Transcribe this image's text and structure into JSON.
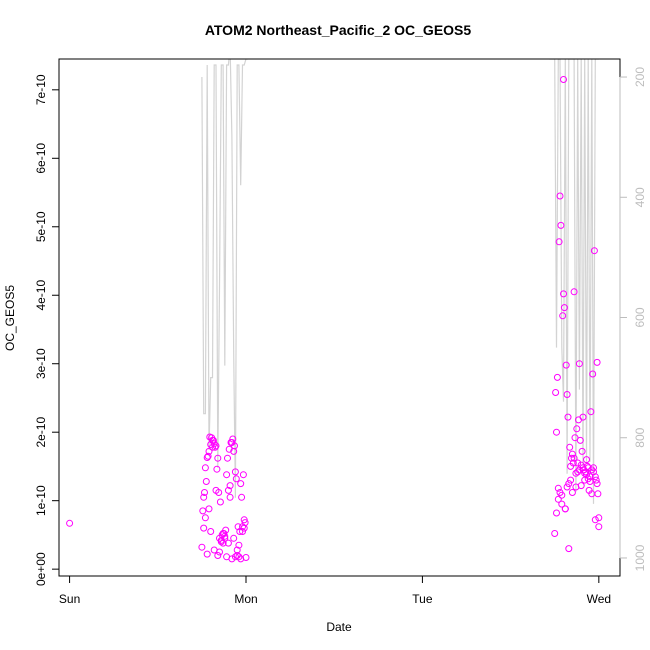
{
  "chart_data": {
    "type": "scatter",
    "title": "ATOM2 Northeast_Pacific_2 OC_GEOS5",
    "xlabel": "Date",
    "ylabel": "OC_GEOS5",
    "x_ticks": [
      "Sun",
      "Mon",
      "Tue",
      "Wed"
    ],
    "x_range_days": [
      -0.06,
      3.12
    ],
    "y_ticks": [
      "0e+00",
      "1e-10",
      "2e-10",
      "3e-10",
      "4e-10",
      "5e-10",
      "6e-10",
      "7e-10"
    ],
    "ylim": [
      -1e-11,
      7.45e-10
    ],
    "y2_ticks": [
      "200",
      "400",
      "600",
      "800",
      "1000"
    ],
    "y2_lim_reversed": [
      1030,
      170
    ],
    "grid": false,
    "colors": {
      "points": "#ff00ff",
      "pressure_line": "#d3d3d3",
      "right_axis": "#bdbdbd"
    },
    "series": [
      {
        "values_x_days": [
          0.0,
          0.75,
          0.76,
          0.77,
          0.78,
          0.79,
          0.8,
          0.81,
          0.82,
          0.83,
          0.84,
          0.85,
          0.86,
          0.87,
          0.88,
          0.89,
          0.9,
          0.91,
          0.92,
          0.93,
          0.94,
          0.95,
          0.96,
          0.97,
          0.98,
          0.99,
          1.0,
          0.755,
          0.765,
          0.775,
          0.785,
          0.795,
          0.805,
          0.815,
          0.825,
          0.835,
          0.845,
          0.855,
          0.865,
          0.875,
          0.885,
          0.895,
          0.905,
          0.915,
          0.925,
          0.935,
          0.945,
          0.955,
          0.965,
          0.975,
          0.985,
          0.995,
          0.76,
          0.78,
          0.8,
          0.82,
          0.84,
          0.86,
          0.88,
          0.9,
          0.92,
          0.94,
          0.96,
          0.98,
          0.77,
          0.79,
          0.81,
          0.83,
          0.85,
          0.87,
          0.89,
          0.91,
          0.93,
          0.95,
          0.97,
          0.99,
          2.75,
          2.76,
          2.77,
          2.78,
          2.79,
          2.8,
          2.81,
          2.82,
          2.83,
          2.84,
          2.85,
          2.86,
          2.87,
          2.88,
          2.89,
          2.9,
          2.91,
          2.92,
          2.93,
          2.94,
          2.95,
          2.96,
          2.97,
          2.98,
          2.99,
          3.0,
          2.755,
          2.765,
          2.775,
          2.785,
          2.795,
          2.805,
          2.815,
          2.825,
          2.835,
          2.845,
          2.855,
          2.865,
          2.875,
          2.885,
          2.895,
          2.905,
          2.915,
          2.925,
          2.935,
          2.945,
          2.955,
          2.965,
          2.975,
          2.985,
          2.995,
          2.76,
          2.78,
          2.8,
          2.82,
          2.84,
          2.86,
          2.88,
          2.9,
          2.92,
          2.94,
          2.96,
          2.98,
          3.0,
          2.77,
          2.79,
          2.81,
          2.83,
          2.85,
          2.87,
          2.89,
          2.91,
          2.93,
          2.95,
          2.97,
          2.99
        ],
        "values_y_e10": [
          0.67,
          0.32,
          1.05,
          1.48,
          1.63,
          1.72,
          1.82,
          1.88,
          1.83,
          1.8,
          1.62,
          0.45,
          0.42,
          0.38,
          0.48,
          1.38,
          1.15,
          1.22,
          1.85,
          1.72,
          1.42,
          0.2,
          0.18,
          0.15,
          0.62,
          0.72,
          0.17,
          0.85,
          1.12,
          1.28,
          1.65,
          1.93,
          1.92,
          1.88,
          1.78,
          1.46,
          1.12,
          0.98,
          0.5,
          0.52,
          0.57,
          1.62,
          1.75,
          1.85,
          1.9,
          1.8,
          1.32,
          0.62,
          0.55,
          1.05,
          1.38,
          0.68,
          0.6,
          0.22,
          0.55,
          0.28,
          0.2,
          0.4,
          0.45,
          0.38,
          0.15,
          0.18,
          0.35,
          0.55,
          0.75,
          0.88,
          1.78,
          1.15,
          0.25,
          0.52,
          0.18,
          1.05,
          0.45,
          0.28,
          1.25,
          0.6,
          0.52,
          0.82,
          1.02,
          1.12,
          1.08,
          7.15,
          0.88,
          1.2,
          1.25,
          1.5,
          1.68,
          1.62,
          1.2,
          1.42,
          1.45,
          1.52,
          1.48,
          1.4,
          1.38,
          1.32,
          1.28,
          1.45,
          1.48,
          1.35,
          1.25,
          0.62,
          2.58,
          2.8,
          4.78,
          5.02,
          3.7,
          3.82,
          2.98,
          2.22,
          1.78,
          1.62,
          1.55,
          1.92,
          2.05,
          2.18,
          1.88,
          1.72,
          1.45,
          1.42,
          1.5,
          1.15,
          2.3,
          2.85,
          4.65,
          1.3,
          1.1,
          2.0,
          5.45,
          4.02,
          2.55,
          1.3,
          4.05,
          1.55,
          1.22,
          1.3,
          1.48,
          1.1,
          0.72,
          0.75,
          1.18,
          0.95,
          0.88,
          0.3,
          1.12,
          1.4,
          3.0,
          2.22,
          1.6,
          1.35,
          1.42,
          3.02
        ],
        "note_units": "y values in units of 1e-10"
      }
    ],
    "secondary_series": {
      "name": "",
      "values_x_days": [
        0.75,
        0.76,
        0.77,
        0.78,
        0.79,
        0.8,
        0.81,
        0.82,
        0.83,
        0.84,
        0.85,
        0.86,
        0.87,
        0.88,
        0.89,
        0.9,
        0.91,
        0.92,
        0.93,
        0.94,
        0.95,
        0.96,
        0.97,
        0.98,
        0.99,
        1.0,
        1.01,
        2.72,
        2.75,
        2.76,
        2.77,
        2.78,
        2.79,
        2.8,
        2.81,
        2.82,
        2.83,
        2.84,
        2.85,
        2.86,
        2.87,
        2.88,
        2.89,
        2.9,
        2.91,
        2.92,
        2.93,
        2.94,
        2.95,
        2.96,
        2.97,
        2.98,
        2.99,
        3.0
      ],
      "values_y_hpa": [
        200,
        760,
        760,
        180,
        820,
        700,
        700,
        180,
        180,
        850,
        550,
        180,
        180,
        680,
        180,
        180,
        150,
        300,
        660,
        900,
        180,
        180,
        380,
        180,
        180,
        170,
        170,
        170,
        170,
        650,
        170,
        170,
        650,
        740,
        170,
        860,
        170,
        170,
        170,
        170,
        890,
        170,
        720,
        170,
        850,
        170,
        840,
        170,
        840,
        170,
        910,
        170,
        170,
        170
      ]
    }
  }
}
